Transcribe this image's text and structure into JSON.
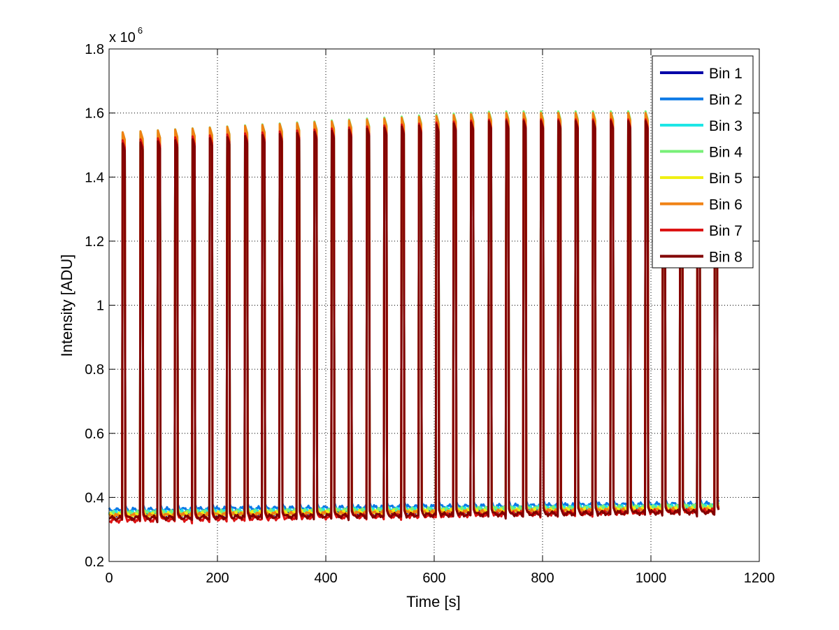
{
  "chart_data": {
    "type": "line",
    "title": "",
    "xlabel": "Time [s]",
    "ylabel": "Intensity [ADU]",
    "xlim": [
      0,
      1200
    ],
    "ylim": [
      200000,
      1800000
    ],
    "grid": true,
    "legend_position": "top-right",
    "y_exponent_label": "x 10",
    "y_exponent_power": "6",
    "x_ticks": [
      {
        "value": 0,
        "label": "0"
      },
      {
        "value": 200,
        "label": "200"
      },
      {
        "value": 400,
        "label": "400"
      },
      {
        "value": 600,
        "label": "600"
      },
      {
        "value": 800,
        "label": "800"
      },
      {
        "value": 1000,
        "label": "1000"
      },
      {
        "value": 1200,
        "label": "1200"
      }
    ],
    "y_ticks": [
      {
        "value": 200000,
        "label": "0.2"
      },
      {
        "value": 400000,
        "label": "0.4"
      },
      {
        "value": 600000,
        "label": "0.6"
      },
      {
        "value": 800000,
        "label": "0.8"
      },
      {
        "value": 1000000,
        "label": "1"
      },
      {
        "value": 1200000,
        "label": "1.2"
      },
      {
        "value": 1400000,
        "label": "1.4"
      },
      {
        "value": 1600000,
        "label": "1.6"
      },
      {
        "value": 1800000,
        "label": "1.8"
      }
    ],
    "time_range": [
      0,
      1125
    ],
    "pulse_times": [
      25,
      58,
      90,
      122,
      154,
      186,
      218,
      251,
      283,
      315,
      347,
      379,
      411,
      443,
      476,
      508,
      540,
      572,
      604,
      636,
      668,
      701,
      733,
      765,
      797,
      829,
      861,
      893,
      926,
      958,
      990,
      1022,
      1054,
      1086,
      1118
    ],
    "pulse_width_s": 5,
    "series": [
      {
        "name": "Bin 1",
        "color": "#0000a8",
        "baseline_start": 345000,
        "baseline_end": 365000,
        "peak_start": 1500000,
        "peak_end": 1560000
      },
      {
        "name": "Bin 2",
        "color": "#0a78e6",
        "baseline_start": 360000,
        "baseline_end": 380000,
        "peak_start": 1530000,
        "peak_end": 1595000
      },
      {
        "name": "Bin 3",
        "color": "#1ee6e6",
        "baseline_start": 352000,
        "baseline_end": 372000,
        "peak_start": 1535000,
        "peak_end": 1600000
      },
      {
        "name": "Bin 4",
        "color": "#78f078",
        "baseline_start": 350000,
        "baseline_end": 372000,
        "peak_start": 1540000,
        "peak_end": 1605000
      },
      {
        "name": "Bin 5",
        "color": "#f0f014",
        "baseline_start": 345000,
        "baseline_end": 365000,
        "peak_start": 1535000,
        "peak_end": 1600000
      },
      {
        "name": "Bin 6",
        "color": "#f08214",
        "baseline_start": 342000,
        "baseline_end": 362000,
        "peak_start": 1540000,
        "peak_end": 1600000
      },
      {
        "name": "Bin 7",
        "color": "#dc1414",
        "baseline_start": 328000,
        "baseline_end": 358000,
        "peak_start": 1515000,
        "peak_end": 1580000
      },
      {
        "name": "Bin 8",
        "color": "#820000",
        "baseline_start": 335000,
        "baseline_end": 355000,
        "peak_start": 1505000,
        "peak_end": 1575000
      }
    ]
  }
}
